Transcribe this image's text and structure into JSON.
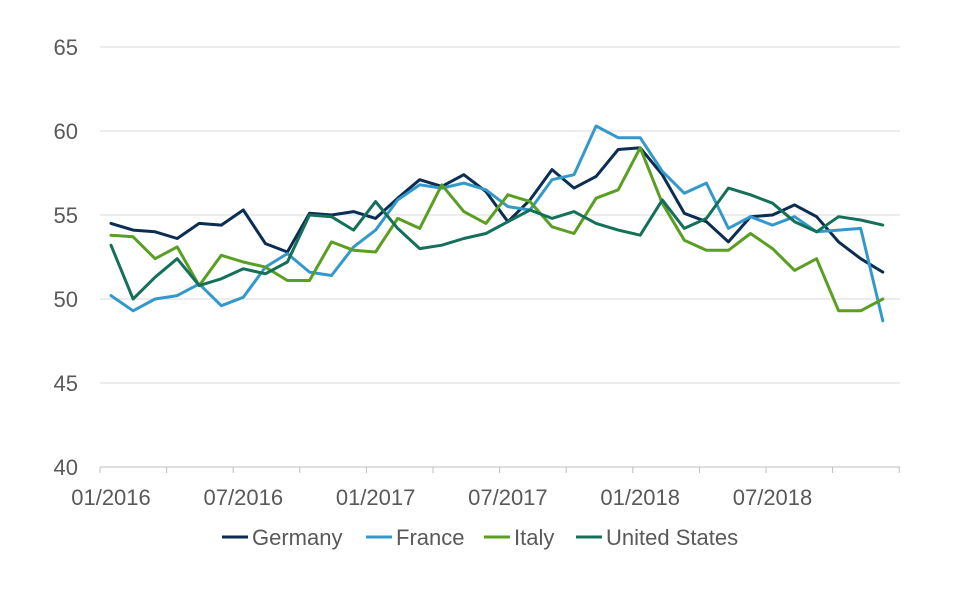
{
  "chart_data": {
    "type": "line",
    "title": "",
    "xlabel": "",
    "ylabel": "",
    "ylim": [
      40,
      65
    ],
    "yticks": [
      40,
      45,
      50,
      55,
      60,
      65
    ],
    "grid": true,
    "legend_position": "bottom",
    "x": [
      "01/2016",
      "02/2016",
      "03/2016",
      "04/2016",
      "05/2016",
      "06/2016",
      "07/2016",
      "08/2016",
      "09/2016",
      "10/2016",
      "11/2016",
      "12/2016",
      "01/2017",
      "02/2017",
      "03/2017",
      "04/2017",
      "05/2017",
      "06/2017",
      "07/2017",
      "08/2017",
      "09/2017",
      "10/2017",
      "11/2017",
      "12/2017",
      "01/2018",
      "02/2018",
      "03/2018",
      "04/2018",
      "05/2018",
      "06/2018",
      "07/2018",
      "08/2018",
      "09/2018",
      "10/2018",
      "11/2018",
      "12/2018"
    ],
    "xtick_labels": [
      "01/2016",
      "07/2016",
      "01/2017",
      "07/2017",
      "01/2018",
      "07/2018"
    ],
    "series": [
      {
        "name": "Germany",
        "color": "#0b2d52",
        "values": [
          54.5,
          54.1,
          54.0,
          53.6,
          54.5,
          54.4,
          55.3,
          53.3,
          52.8,
          55.1,
          55.0,
          55.2,
          54.8,
          56.0,
          57.1,
          56.7,
          57.4,
          56.4,
          54.6,
          55.9,
          57.7,
          56.6,
          57.3,
          58.9,
          59.0,
          57.4,
          55.1,
          54.6,
          53.4,
          54.9,
          55.0,
          55.6,
          54.9,
          53.4,
          52.4,
          51.6
        ]
      },
      {
        "name": "France",
        "color": "#3399cc",
        "values": [
          50.2,
          49.3,
          50.0,
          50.2,
          50.9,
          49.6,
          50.1,
          51.9,
          52.7,
          51.6,
          51.4,
          53.1,
          54.1,
          55.9,
          56.8,
          56.6,
          56.9,
          56.5,
          55.5,
          55.3,
          57.1,
          57.4,
          60.3,
          59.6,
          59.6,
          57.6,
          56.3,
          56.9,
          54.2,
          54.9,
          54.4,
          54.9,
          54.0,
          54.1,
          54.2,
          48.7
        ]
      },
      {
        "name": "Italy",
        "color": "#5a9e22",
        "values": [
          53.8,
          53.7,
          52.4,
          53.1,
          50.8,
          52.6,
          52.2,
          51.9,
          51.1,
          51.1,
          53.4,
          52.9,
          52.8,
          54.8,
          54.2,
          56.8,
          55.2,
          54.5,
          56.2,
          55.8,
          54.3,
          53.9,
          56.0,
          56.5,
          59.0,
          55.7,
          53.5,
          52.9,
          52.9,
          53.9,
          53.0,
          51.7,
          52.4,
          49.3,
          49.3,
          50.0
        ]
      },
      {
        "name": "United States",
        "color": "#15705a",
        "values": [
          53.2,
          50.0,
          51.3,
          52.4,
          50.8,
          51.2,
          51.8,
          51.5,
          52.2,
          55.0,
          54.9,
          54.1,
          55.8,
          54.2,
          53.0,
          53.2,
          53.6,
          53.9,
          54.6,
          55.3,
          54.8,
          55.2,
          54.5,
          54.1,
          53.8,
          55.9,
          54.2,
          54.8,
          56.6,
          56.2,
          55.7,
          54.6,
          54.0,
          54.9,
          54.7,
          54.4
        ]
      }
    ]
  }
}
